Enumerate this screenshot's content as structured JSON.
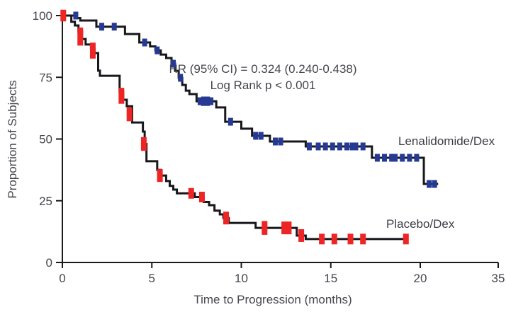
{
  "chart_data": {
    "type": "line",
    "subtype": "kaplan-meier-step",
    "title": "",
    "xlabel": "Time to Progression (months)",
    "ylabel": "Proportion of Subjects",
    "xlim": [
      0,
      35
    ],
    "ylim": [
      0,
      100
    ],
    "x_ticks": [
      0,
      5,
      10,
      15,
      20,
      35
    ],
    "y_ticks": [
      0,
      25,
      50,
      75,
      100
    ],
    "grid": false,
    "axis_note": "x ticks 0-20 evenly spaced; final tick labeled 35 sits at the axis end",
    "annotations": [
      "HR (95% CI) = 0.324 (0.240-0.438)",
      "Log Rank p < 0.001"
    ],
    "line_color": "#17171c",
    "series": [
      {
        "name": "Lenalidomide/Dex",
        "censor_color": "#263a93",
        "censor_mark_size": [
          7,
          11
        ],
        "end_time": 21.0,
        "steps": [
          [
            0,
            100
          ],
          [
            0.8,
            99
          ],
          [
            1.0,
            98
          ],
          [
            1.9,
            95.5
          ],
          [
            3.5,
            92.5
          ],
          [
            4.3,
            89.1
          ],
          [
            4.9,
            87.5
          ],
          [
            5.2,
            85.9
          ],
          [
            5.5,
            84.2
          ],
          [
            5.8,
            82.8
          ],
          [
            6.1,
            80.5
          ],
          [
            6.3,
            77.6
          ],
          [
            6.5,
            74.8
          ],
          [
            6.7,
            71.9
          ],
          [
            6.9,
            69.6
          ],
          [
            7.1,
            68.2
          ],
          [
            7.5,
            65.3
          ],
          [
            8.6,
            62.8
          ],
          [
            9.1,
            57.0
          ],
          [
            10.0,
            54.2
          ],
          [
            10.6,
            51.3
          ],
          [
            11.6,
            49.0
          ],
          [
            13.6,
            47.0
          ],
          [
            17.3,
            42.4
          ],
          [
            20.2,
            31.8
          ]
        ],
        "censor_marks": [
          [
            0.75,
            100
          ],
          [
            2.2,
            95.5
          ],
          [
            2.9,
            95.5
          ],
          [
            4.6,
            89.1
          ],
          [
            5.3,
            85.9
          ],
          [
            6.2,
            80.5
          ],
          [
            6.6,
            74.8
          ],
          [
            7.7,
            65.3
          ],
          [
            8.0,
            65.3,
            1.2,
            1.8
          ],
          [
            8.3,
            65.3
          ],
          [
            9.4,
            57.0
          ],
          [
            10.8,
            51.3
          ],
          [
            11.1,
            51.3
          ],
          [
            11.9,
            49.0
          ],
          [
            12.2,
            49.0
          ],
          [
            13.8,
            47.0
          ],
          [
            14.3,
            47.0
          ],
          [
            14.7,
            47.0
          ],
          [
            15.1,
            47.0
          ],
          [
            15.5,
            47.0
          ],
          [
            15.9,
            47.0
          ],
          [
            16.3,
            47.0,
            1,
            1.7
          ],
          [
            16.8,
            47.0
          ],
          [
            17.6,
            42.4
          ],
          [
            18.0,
            42.4
          ],
          [
            18.5,
            42.4,
            1,
            1.7
          ],
          [
            19.0,
            42.4
          ],
          [
            19.4,
            42.4
          ],
          [
            19.8,
            42.4
          ],
          [
            20.5,
            31.8
          ],
          [
            20.8,
            31.8
          ]
        ]
      },
      {
        "name": "Placebo/Dex",
        "censor_color": "#ed2524",
        "censor_mark_size": [
          8,
          15
        ],
        "end_time": 19.3,
        "steps": [
          [
            0,
            100
          ],
          [
            0.5,
            97.5
          ],
          [
            0.7,
            96
          ],
          [
            0.9,
            93.5
          ],
          [
            1.1,
            90.5
          ],
          [
            1.3,
            88.3
          ],
          [
            1.6,
            86.8
          ],
          [
            1.8,
            84.8
          ],
          [
            2.0,
            77.7
          ],
          [
            2.1,
            75.6
          ],
          [
            3.2,
            69.0
          ],
          [
            3.4,
            65.9
          ],
          [
            3.6,
            63.3
          ],
          [
            3.9,
            56.7
          ],
          [
            4.5,
            53.0
          ],
          [
            4.6,
            48.0
          ],
          [
            4.7,
            41.0
          ],
          [
            5.3,
            37.5
          ],
          [
            5.5,
            35.2
          ],
          [
            5.8,
            33.0
          ],
          [
            6.0,
            31.0
          ],
          [
            6.2,
            29.5
          ],
          [
            6.4,
            28.0
          ],
          [
            7.4,
            26.5
          ],
          [
            7.9,
            24.5
          ],
          [
            8.2,
            23.2
          ],
          [
            8.5,
            21.0
          ],
          [
            8.8,
            19.5
          ],
          [
            9.0,
            18.0
          ],
          [
            9.3,
            16.0
          ],
          [
            10.8,
            14.0
          ],
          [
            13.1,
            10.9
          ],
          [
            13.6,
            9.5
          ]
        ],
        "censor_marks": [
          [
            0.05,
            100,
            1.1
          ],
          [
            1.0,
            91.5,
            1.7
          ],
          [
            1.7,
            85.8,
            1.5
          ],
          [
            3.3,
            67.5,
            1.5
          ],
          [
            3.75,
            60,
            1.3
          ],
          [
            4.55,
            48,
            1.3
          ],
          [
            5.45,
            35.2,
            1.2
          ],
          [
            7.2,
            28
          ],
          [
            7.8,
            26.5
          ],
          [
            9.15,
            18,
            1.2
          ],
          [
            11.3,
            14,
            1.3
          ],
          [
            12.4,
            14,
            1.2
          ],
          [
            12.65,
            14,
            1.2
          ],
          [
            13.35,
            10.9,
            1.2
          ],
          [
            14.5,
            9.5
          ],
          [
            15.2,
            9.5
          ],
          [
            16.1,
            9.5
          ],
          [
            16.8,
            9.5
          ],
          [
            19.2,
            9.5
          ]
        ]
      }
    ]
  }
}
